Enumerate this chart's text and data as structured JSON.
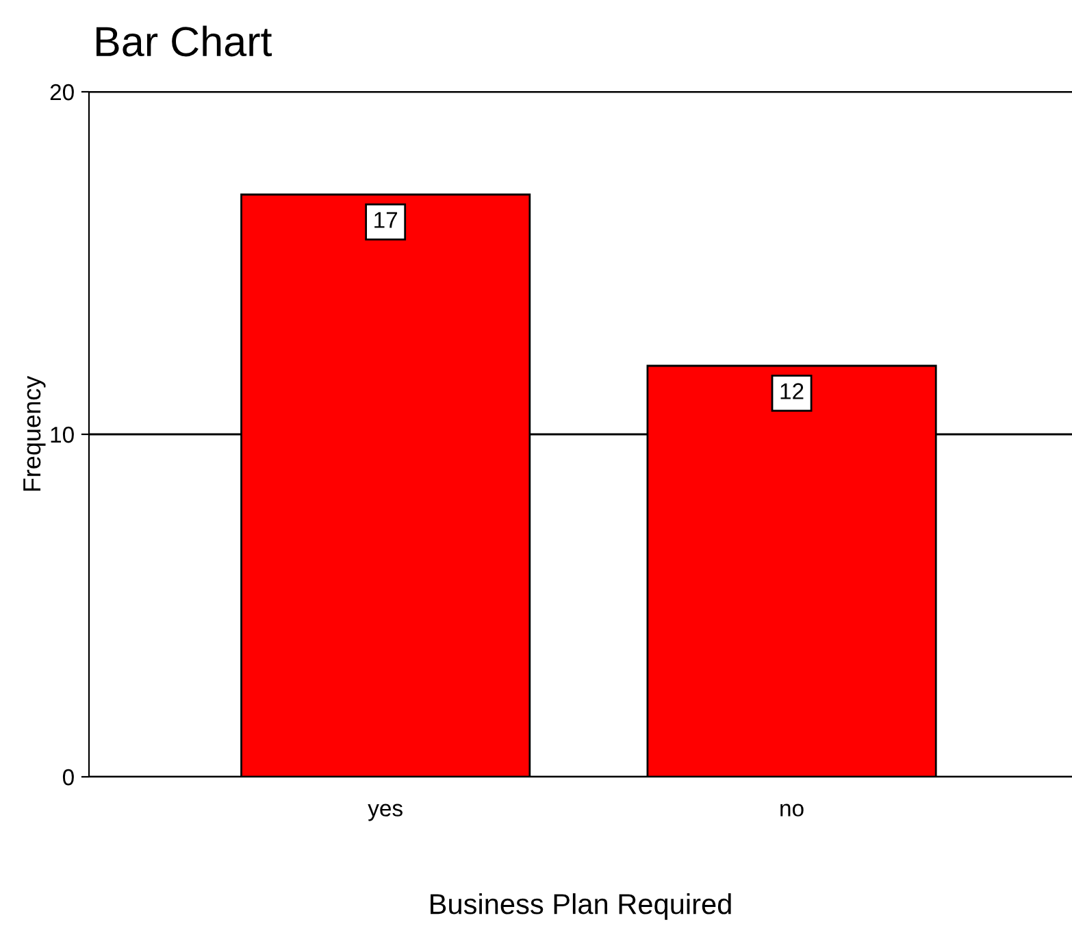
{
  "chart_data": {
    "type": "bar",
    "title": "Bar Chart",
    "xlabel": "Business Plan Required",
    "ylabel": "Frequency",
    "categories": [
      "yes",
      "no"
    ],
    "values": [
      17,
      12
    ],
    "color": "#ff0000",
    "ylim": [
      0,
      20
    ],
    "yticks": [
      0,
      10,
      20
    ],
    "grid": "y",
    "data_labels": true,
    "legend": false
  }
}
